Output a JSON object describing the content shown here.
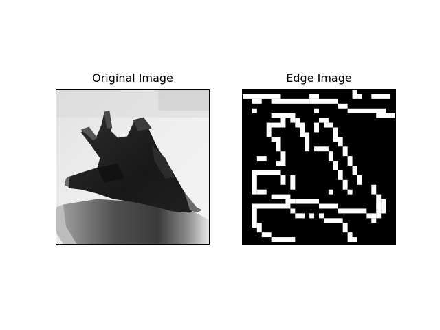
{
  "figure": {
    "panels": [
      {
        "id": "original",
        "title": "Original Image"
      },
      {
        "id": "edge",
        "title": "Edge Image"
      }
    ]
  },
  "colors": {
    "background": "#ffffff",
    "frame": "#000000",
    "edge_bg": "#000000",
    "edge_fg": "#ffffff"
  }
}
